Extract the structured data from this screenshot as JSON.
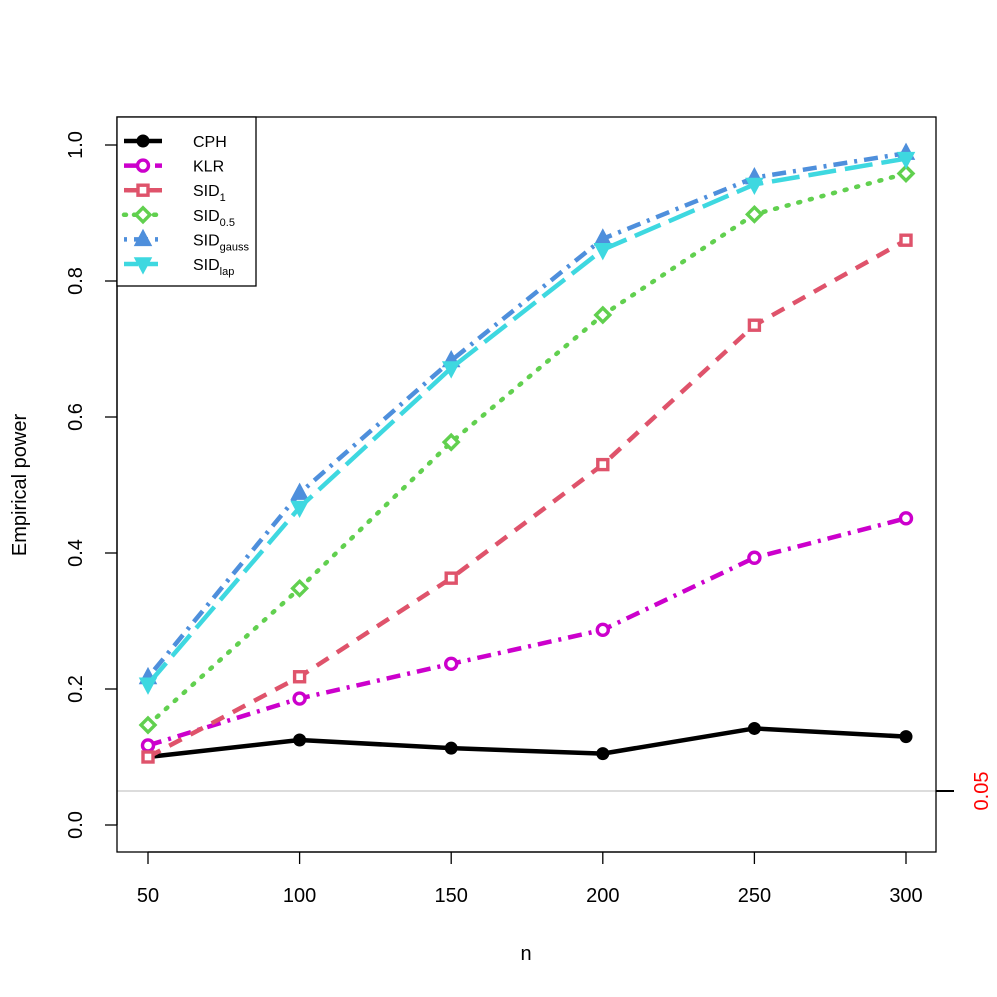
{
  "chart_data": {
    "type": "line",
    "xlabel": "n",
    "ylabel": "Empirical power",
    "x": [
      50,
      100,
      150,
      200,
      250,
      300
    ],
    "xlim": [
      50,
      300
    ],
    "ylim": [
      0,
      1
    ],
    "x_ticks": [
      "50",
      "100",
      "150",
      "200",
      "250",
      "300"
    ],
    "y_ticks": [
      "0.0",
      "0.2",
      "0.4",
      "0.6",
      "0.8",
      "1.0"
    ],
    "grid": false,
    "legend_position": "top-left",
    "reference_line": {
      "value": 0.05,
      "label": "0.05",
      "color": "#d0d0d0",
      "label_color": "#ff0000"
    },
    "series": [
      {
        "name": "CPH",
        "legend_main": "CPH",
        "legend_sub": "",
        "color": "#000000",
        "dash": "solid",
        "marker": "filled-circle",
        "values": [
          0.1,
          0.125,
          0.113,
          0.105,
          0.142,
          0.13
        ]
      },
      {
        "name": "KLR",
        "legend_main": "KLR",
        "legend_sub": "",
        "color": "#cc00cc",
        "dash": "dashdot",
        "marker": "open-circle",
        "values": [
          0.117,
          0.186,
          0.237,
          0.287,
          0.393,
          0.451
        ]
      },
      {
        "name": "SID1",
        "legend_main": "SID",
        "legend_sub": "1",
        "color": "#df536b",
        "dash": "dashed",
        "marker": "open-square",
        "values": [
          0.1,
          0.218,
          0.363,
          0.53,
          0.735,
          0.86
        ]
      },
      {
        "name": "SID0.5",
        "legend_main": "SID",
        "legend_sub": "0.5",
        "color": "#61d04f",
        "dash": "dotted",
        "marker": "open-diamond",
        "values": [
          0.147,
          0.348,
          0.563,
          0.75,
          0.898,
          0.958
        ]
      },
      {
        "name": "SIDgauss",
        "legend_main": "SID",
        "legend_sub": "gauss",
        "color": "#4e8fdc",
        "dash": "dotdash",
        "marker": "filled-triangle-up",
        "values": [
          0.217,
          0.488,
          0.683,
          0.862,
          0.952,
          0.988
        ]
      },
      {
        "name": "SIDlap",
        "legend_main": "SID",
        "legend_sub": "lap",
        "color": "#3ed8e0",
        "dash": "longdash",
        "marker": "filled-triangle-down",
        "values": [
          0.207,
          0.467,
          0.672,
          0.846,
          0.942,
          0.98
        ]
      }
    ]
  }
}
